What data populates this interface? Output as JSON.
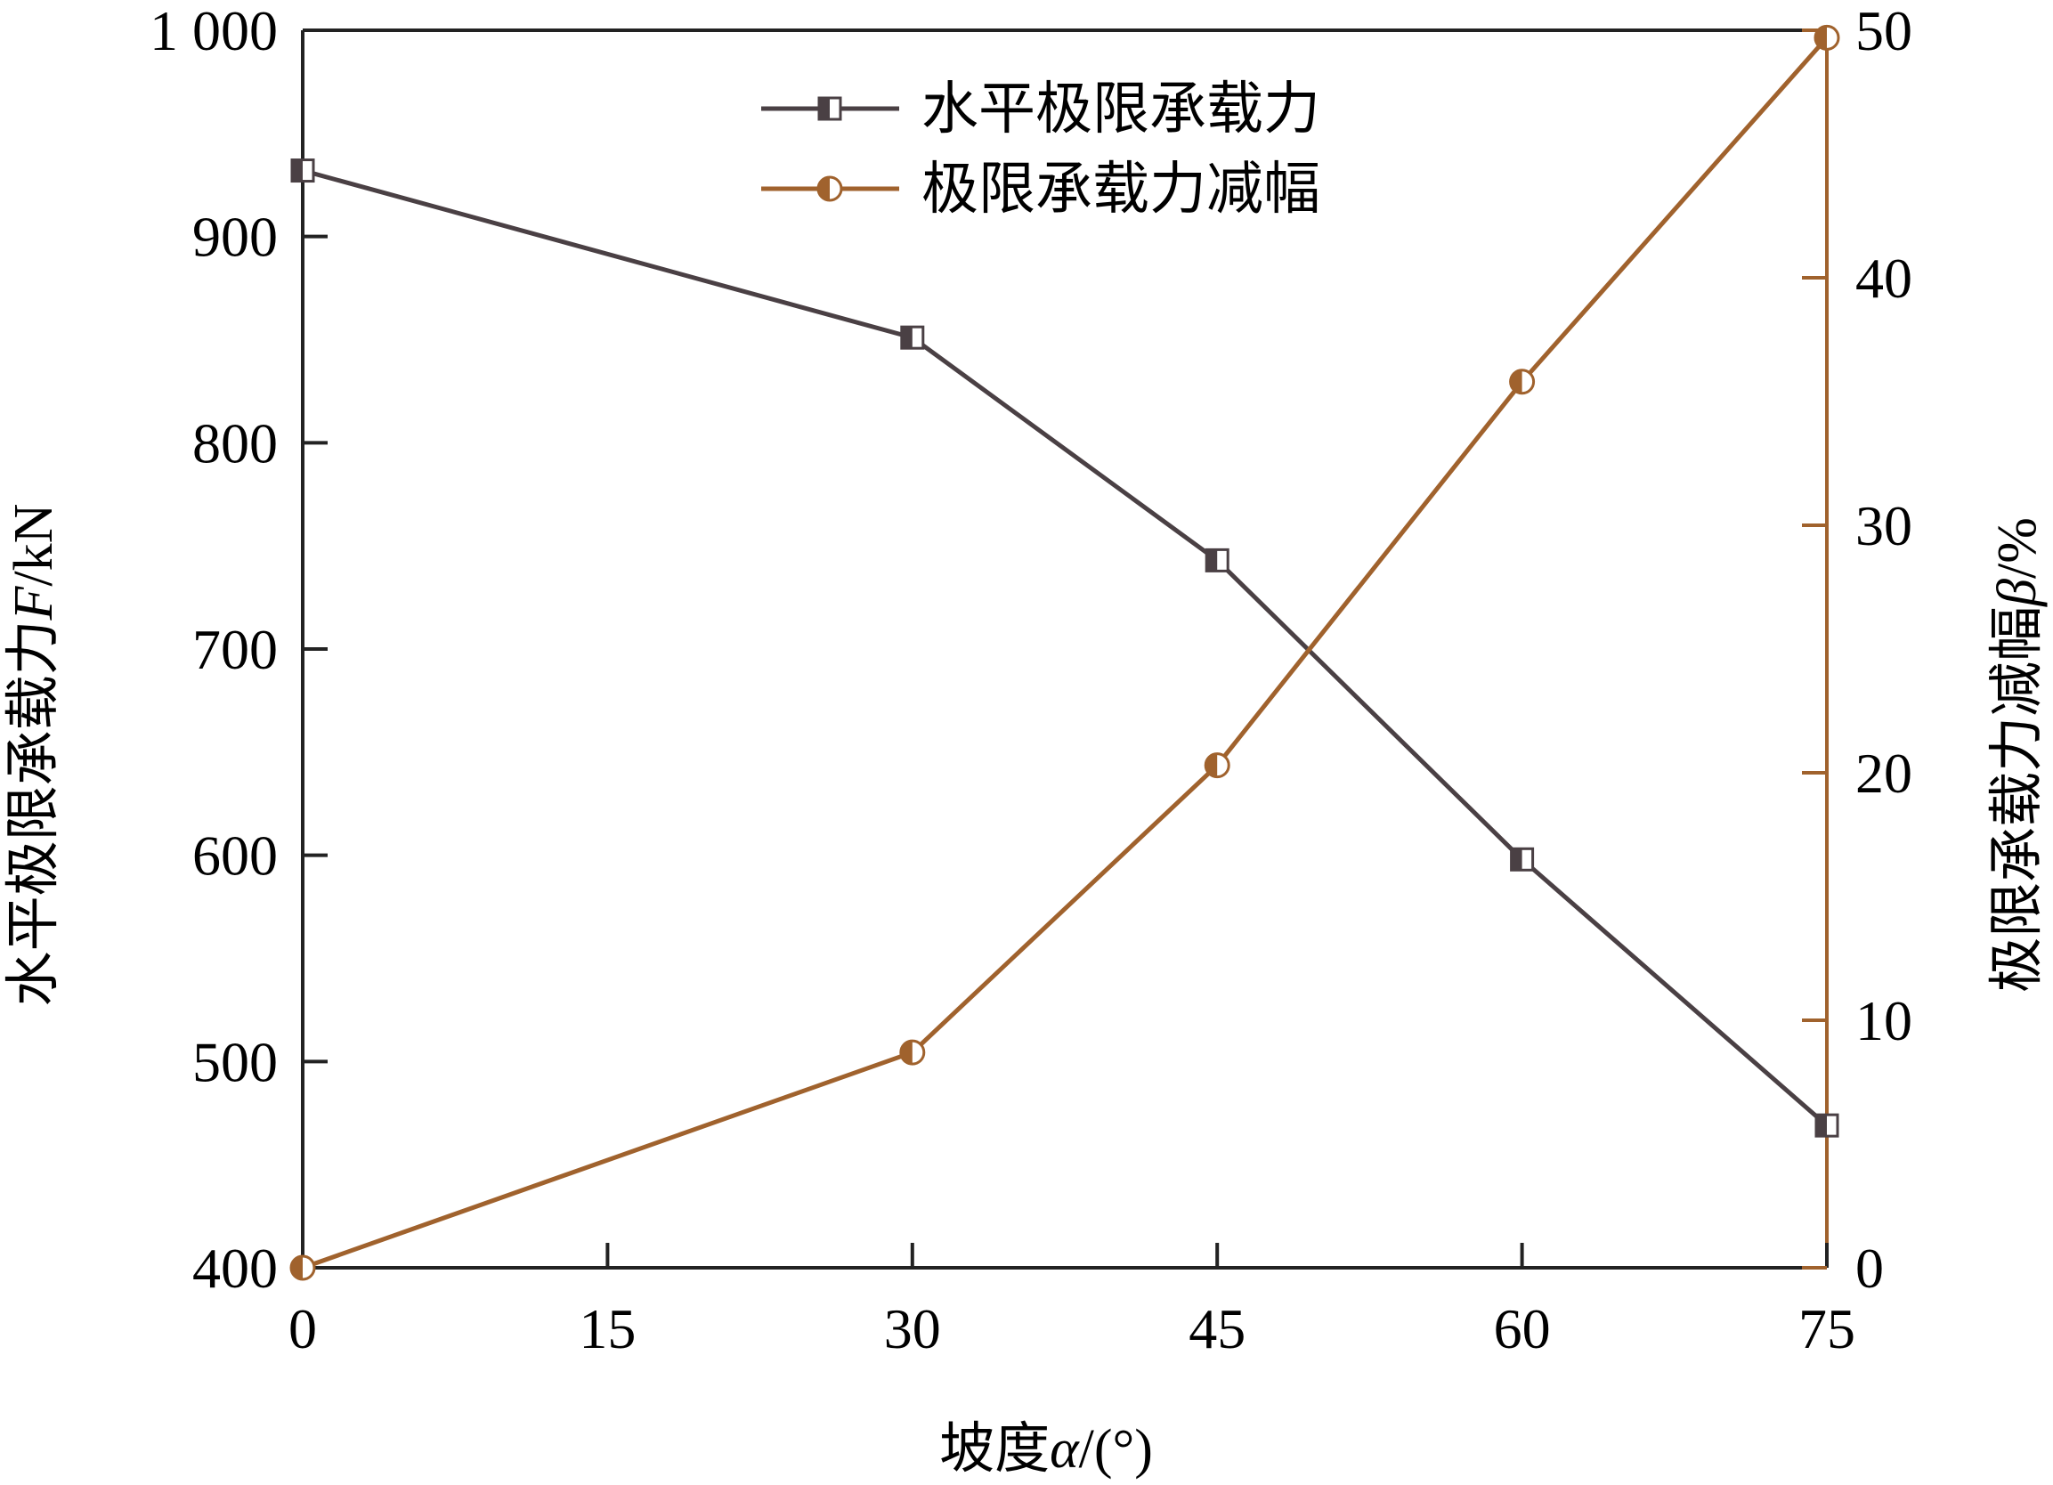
{
  "chart_data": {
    "type": "line",
    "x": [
      0,
      30,
      45,
      60,
      75
    ],
    "xlabel": {
      "prefix": "坡度",
      "symbol": "α",
      "suffix": "/(°)"
    },
    "ylabel_left": {
      "prefix": "水平极限承载力",
      "symbol": "F",
      "suffix": "/kN"
    },
    "ylabel_right": {
      "prefix": "极限承载力减幅",
      "symbol": "β",
      "suffix": "/%"
    },
    "xlim": [
      0,
      75
    ],
    "ylim_left": [
      400,
      1000
    ],
    "ylim_right": [
      0,
      50
    ],
    "x_ticks": [
      0,
      15,
      30,
      45,
      60,
      75
    ],
    "y_left_ticks": [
      400,
      500,
      600,
      700,
      800,
      900,
      1000
    ],
    "y_left_tick_labels": [
      "400",
      "500",
      "600",
      "700",
      "800",
      "900",
      "1 000"
    ],
    "y_right_ticks": [
      0,
      10,
      20,
      30,
      40,
      50
    ],
    "grid": false,
    "legend_position": "top-center",
    "series": [
      {
        "name": "水平极限承载力",
        "axis": "left",
        "marker": "square",
        "color": "#4a4044",
        "values": [
          932,
          851,
          743,
          598,
          469
        ]
      },
      {
        "name": "极限承载力减幅",
        "axis": "right",
        "marker": "circle",
        "color": "#a0622d",
        "values": [
          0,
          8.7,
          20.3,
          35.8,
          49.7
        ]
      }
    ]
  }
}
